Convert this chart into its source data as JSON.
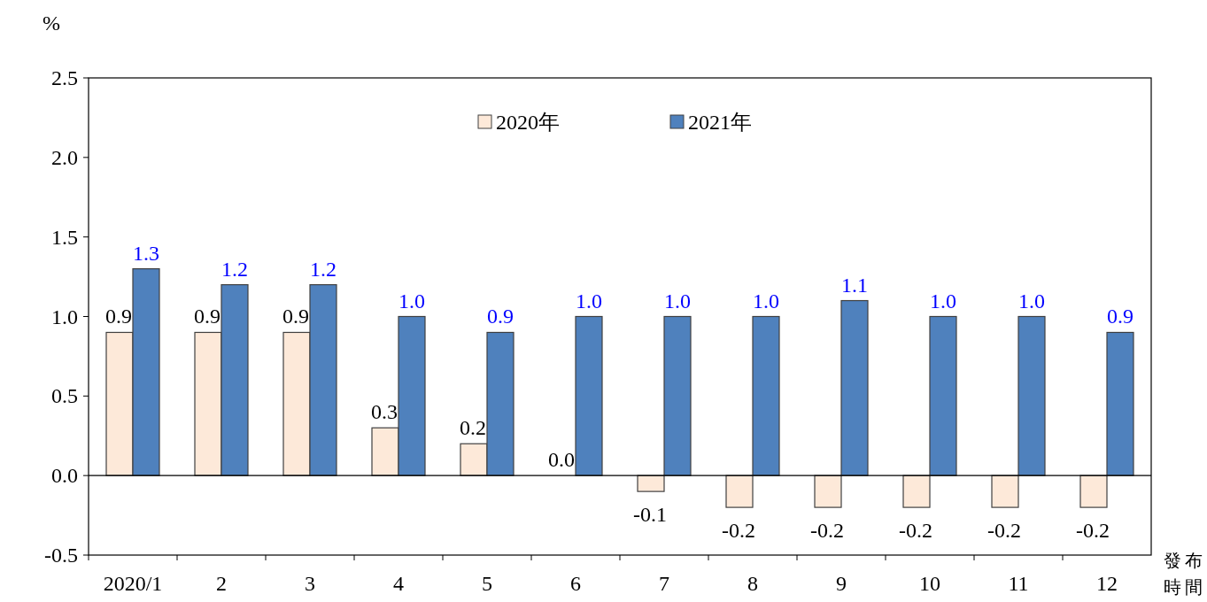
{
  "chart_data": {
    "type": "bar",
    "ylabel": "%",
    "xlabel": "發布時間",
    "categories": [
      "2020/1",
      "2",
      "3",
      "4",
      "5",
      "6",
      "7",
      "8",
      "9",
      "10",
      "11",
      "12"
    ],
    "series": [
      {
        "name": "2020年",
        "color": "#fde9d9",
        "values": [
          0.9,
          0.9,
          0.9,
          0.3,
          0.2,
          0.0,
          -0.1,
          -0.2,
          -0.2,
          -0.2,
          -0.2,
          -0.2
        ],
        "value_labels": [
          "0.9",
          "0.9",
          "0.9",
          "0.3",
          "0.2",
          "0.0",
          "-0.1",
          "-0.2",
          "-0.2",
          "-0.2",
          "-0.2",
          "-0.2"
        ]
      },
      {
        "name": "2021年",
        "color": "#4f81bd",
        "values": [
          1.3,
          1.2,
          1.2,
          1.0,
          0.9,
          1.0,
          1.0,
          1.0,
          1.1,
          1.0,
          1.0,
          0.9
        ],
        "value_labels": [
          "1.3",
          "1.2",
          "1.2",
          "1.0",
          "0.9",
          "1.0",
          "1.0",
          "1.0",
          "1.1",
          "1.0",
          "1.0",
          "0.9"
        ]
      }
    ],
    "ylim": [
      -0.5,
      2.5
    ],
    "yticks": [
      2.5,
      {
        "value": 2.0,
        "label": "2.0"
      },
      1.5,
      {
        "value": 1.0,
        "label": "1.0"
      },
      0.5,
      {
        "value": 0.0,
        "label": "0.0"
      },
      -0.5
    ],
    "legend": "top"
  }
}
